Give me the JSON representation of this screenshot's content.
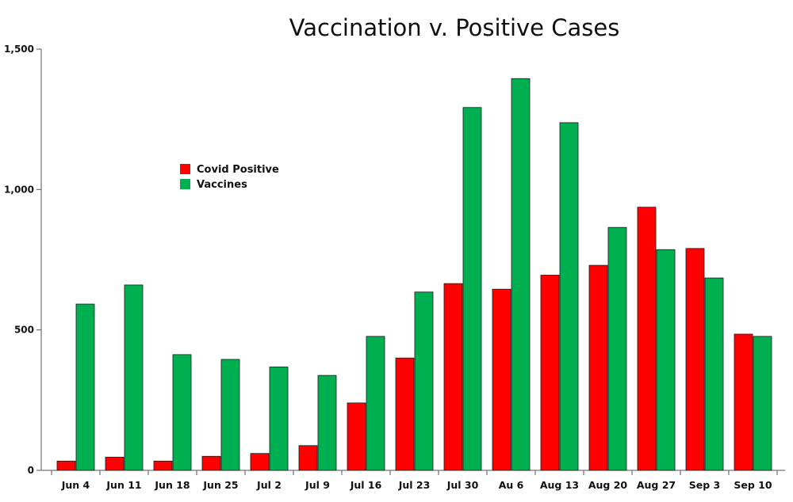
{
  "chart_data": {
    "type": "bar",
    "title": "Vaccination v. Positive Cases",
    "xlabel": "",
    "ylabel": "",
    "categories": [
      "Jun 4",
      "Jun 11",
      "Jun 18",
      "Jun 25",
      "Jul 2",
      "Jul 9",
      "Jul 16",
      "Jul 23",
      "Jul 30",
      "Au 6",
      "Aug 13",
      "Aug 20",
      "Aug 27",
      "Sep 3",
      "Sep 10"
    ],
    "series": [
      {
        "name": "Covid Positive",
        "color": "#ff0000",
        "values": [
          33,
          47,
          33,
          50,
          60,
          88,
          240,
          400,
          665,
          645,
          695,
          730,
          937,
          790,
          485
        ]
      },
      {
        "name": "Vaccines",
        "color": "#00b050",
        "values": [
          592,
          660,
          412,
          395,
          368,
          338,
          477,
          635,
          1292,
          1395,
          1238,
          865,
          786,
          685,
          477
        ]
      }
    ],
    "ylim": [
      0,
      1500
    ],
    "yticks": [
      0,
      500,
      1000,
      1500
    ],
    "ytick_labels": [
      "0",
      "500",
      "1,000",
      "1,500"
    ],
    "grid": false,
    "legend_position": "upper-left"
  }
}
